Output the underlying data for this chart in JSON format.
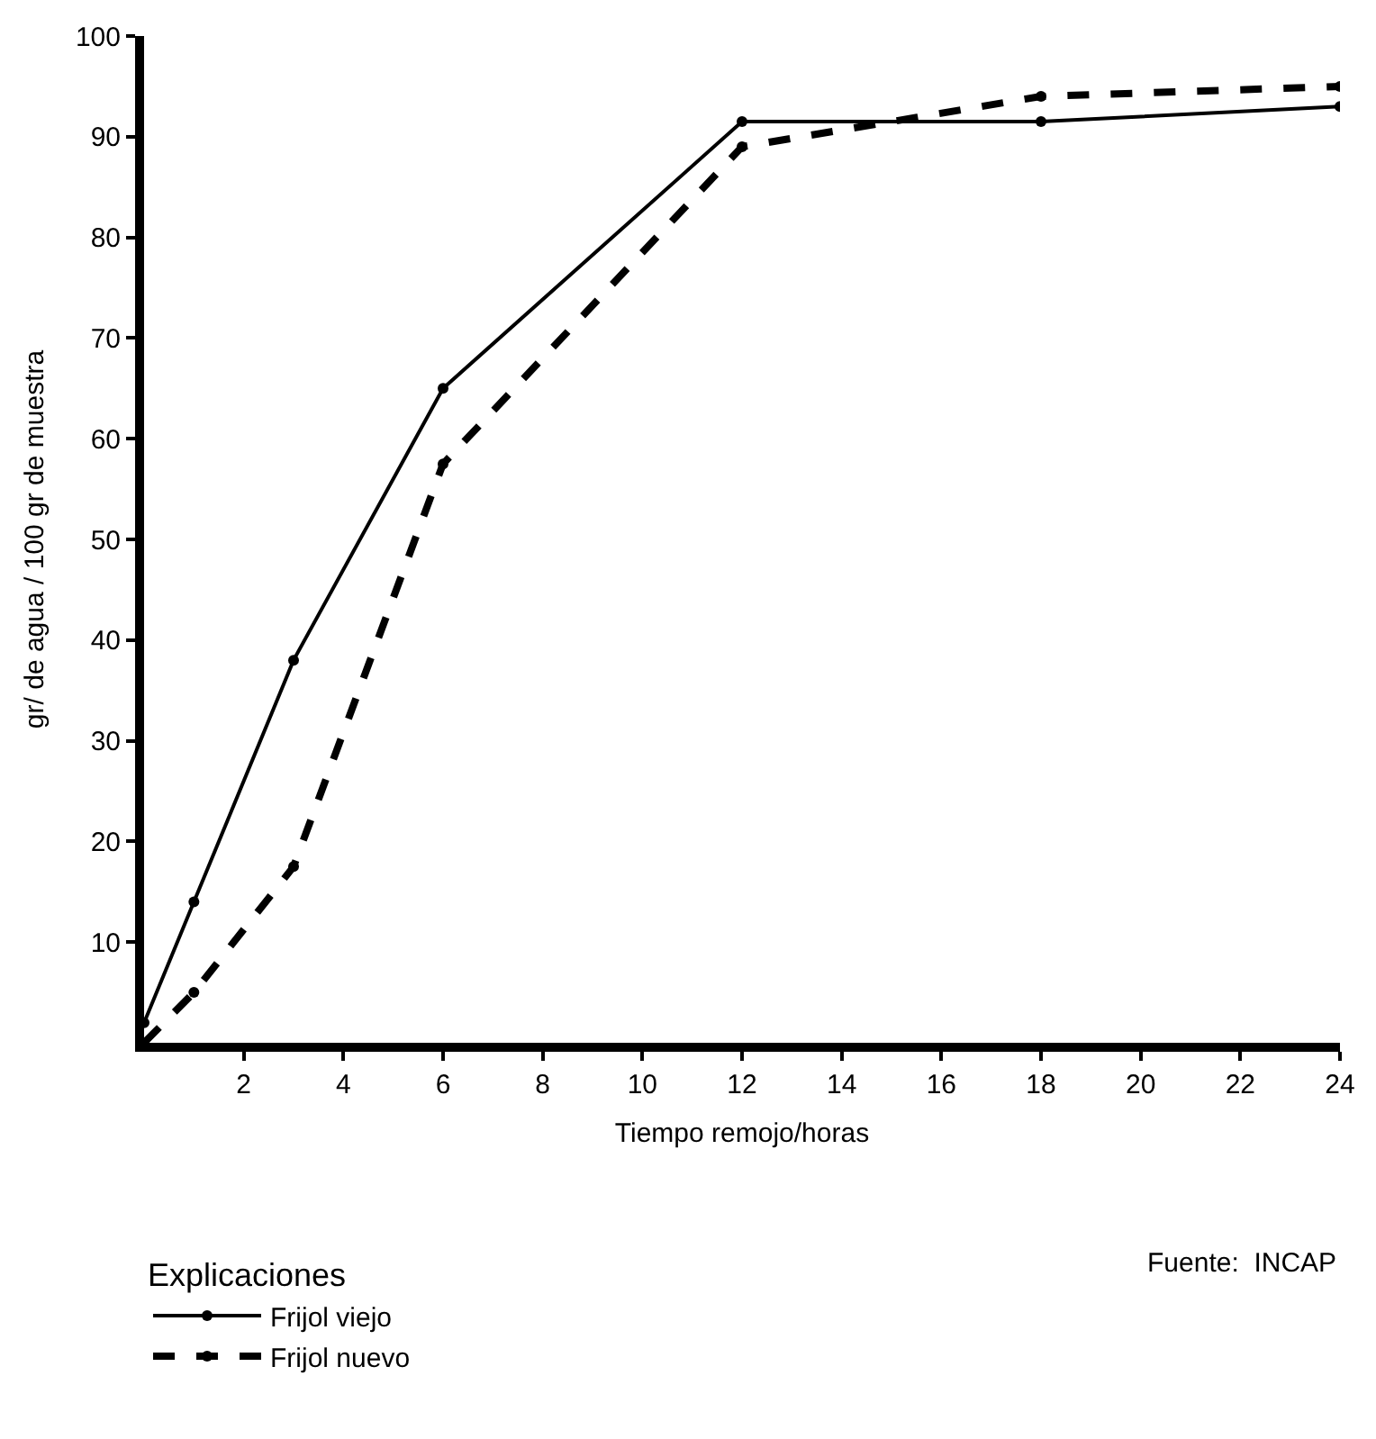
{
  "chart_data": {
    "type": "line",
    "xlabel": "Tiempo remojo/horas",
    "ylabel": "gr/ de agua / 100 gr de muestra",
    "legend_title": "Explicaciones",
    "x": [
      0,
      1,
      3,
      6,
      12,
      18,
      24
    ],
    "series": [
      {
        "name": "Frijol viejo",
        "color": "#000000",
        "line_style": "solid",
        "values": [
          2,
          14,
          38,
          65,
          91.5,
          91.5,
          93
        ]
      },
      {
        "name": "Frijol nuevo",
        "color": "#000000",
        "line_style": "dashed",
        "values": [
          0,
          5,
          17.5,
          57.5,
          89,
          94,
          95
        ]
      }
    ],
    "xlim": [
      0,
      24
    ],
    "xticks": [
      2,
      4,
      6,
      8,
      10,
      12,
      14,
      16,
      18,
      20,
      22,
      24
    ],
    "ylim": [
      0,
      100
    ],
    "yticks": [
      10,
      20,
      30,
      40,
      50,
      60,
      70,
      80,
      90,
      100
    ],
    "legend": "bottom left",
    "marker": "circle",
    "annotations": [
      "Fuente:  INCAP"
    ]
  }
}
